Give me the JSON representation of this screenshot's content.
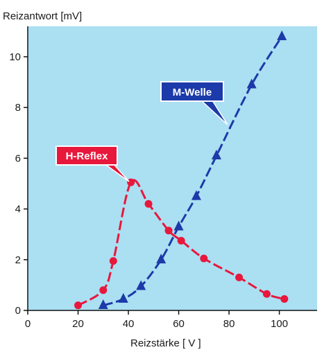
{
  "chart_data": {
    "type": "line",
    "ylabel": "Reizantwort [mV]",
    "xlabel": "Reizstärke [ V ]",
    "xlim": [
      0,
      115
    ],
    "ylim": [
      0,
      11.2
    ],
    "x_ticks": [
      0,
      20,
      40,
      60,
      80,
      100
    ],
    "y_ticks": [
      0,
      2,
      4,
      6,
      8,
      10
    ],
    "x_tick_labels": [
      "0",
      "20",
      "40",
      "60",
      "80",
      "100"
    ],
    "y_tick_labels": [
      "0",
      "2",
      "4",
      "6",
      "8",
      "10"
    ],
    "grid": false,
    "series": [
      {
        "name": "H-Reflex",
        "marker": "circle",
        "color": "#e8173c",
        "points": [
          [
            20,
            0.2
          ],
          [
            30,
            0.8
          ],
          [
            34,
            1.95
          ],
          [
            41,
            5.05
          ],
          [
            48,
            4.2
          ],
          [
            56,
            3.15
          ],
          [
            61,
            2.75
          ],
          [
            70,
            2.05
          ],
          [
            84,
            1.3
          ],
          [
            95,
            0.65
          ],
          [
            102,
            0.45
          ]
        ]
      },
      {
        "name": "M-Welle",
        "marker": "triangle",
        "color": "#1c3aa9",
        "points": [
          [
            30,
            0.2
          ],
          [
            38,
            0.45
          ],
          [
            45,
            0.95
          ],
          [
            53,
            2.0
          ],
          [
            60,
            3.3
          ],
          [
            67,
            4.5
          ],
          [
            75,
            6.1
          ],
          [
            89,
            8.9
          ],
          [
            101,
            10.8
          ]
        ]
      }
    ]
  },
  "colors": {
    "plot_background": "#abdff2",
    "h_reflex": "#e8173c",
    "m_welle": "#1c3aa9",
    "axis": "#111111"
  }
}
